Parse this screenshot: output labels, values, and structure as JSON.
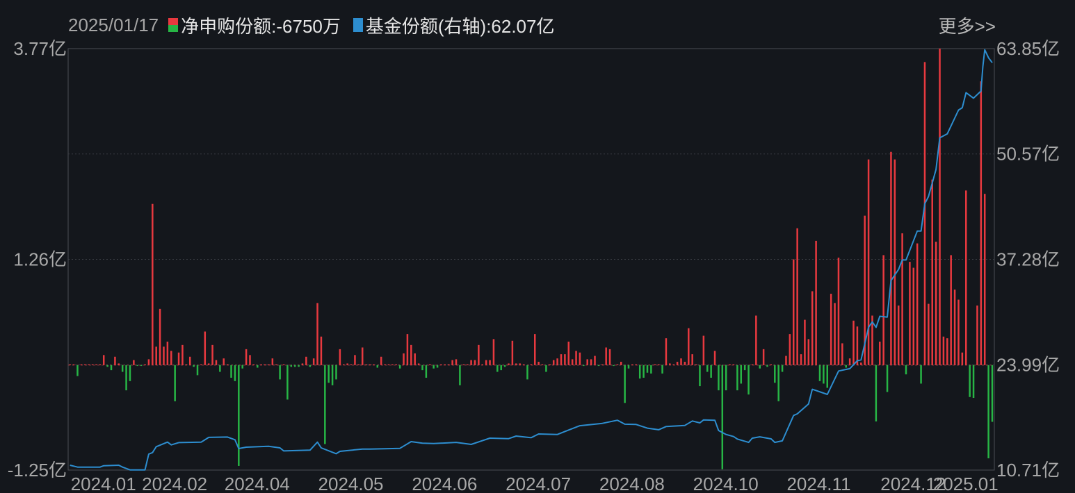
{
  "header": {
    "date": "2025/01/17",
    "legend_net": "净申购份额:-6750万",
    "legend_share": "基金份额(右轴):62.07亿",
    "more_label": "更多>>"
  },
  "colors": {
    "positive": "#e8393f",
    "negative": "#27b545",
    "line": "#2d8ed0",
    "background": "#14171c",
    "grid": "#3a3d44"
  },
  "chart_data": {
    "type": "bar+line",
    "series": [
      {
        "name": "净申购份额",
        "unit": "亿",
        "axis": "left",
        "type": "bar",
        "values": [
          0.01,
          0.01,
          -0.13,
          0.01,
          0.01,
          0.01,
          0.01,
          0.01,
          0.01,
          0.12,
          -0.02,
          -0.06,
          0.1,
          0.02,
          -0.08,
          -0.3,
          -0.19,
          0.06,
          -0.01,
          -0.01,
          0.01,
          0.07,
          1.92,
          0.22,
          0.67,
          0.22,
          0.28,
          0.17,
          -0.43,
          0.15,
          0.24,
          0.01,
          0.1,
          -0.02,
          -0.12,
          0.01,
          0.4,
          0.02,
          0.24,
          0.06,
          -0.08,
          0.08,
          0.01,
          -0.15,
          -0.19,
          -1.2,
          -0.04,
          0.19,
          0.12,
          0.01,
          -0.03,
          0.01,
          0.01,
          0.01,
          0.08,
          0.01,
          -0.17,
          0.01,
          -0.41,
          -0.02,
          -0.02,
          -0.02,
          0.02,
          0.1,
          -0.02,
          0.08,
          0.74,
          0.34,
          -0.94,
          -0.21,
          -0.24,
          -0.17,
          0.19,
          0.01,
          0.02,
          0.01,
          0.12,
          0.01,
          0.21,
          0.01,
          0.01,
          0.01,
          -0.03,
          0.1,
          0.01,
          0.01,
          0.01,
          0.01,
          -0.04,
          0.14,
          0.37,
          0.24,
          0.14,
          0.02,
          -0.06,
          -0.15,
          0.01,
          -0.04,
          -0.03,
          0.01,
          0.01,
          0.01,
          0.06,
          0.07,
          -0.24,
          0.01,
          0.01,
          0.06,
          0.06,
          0.24,
          0.01,
          0.06,
          0.06,
          0.31,
          -0.08,
          -0.06,
          -0.02,
          0.02,
          0.29,
          0.02,
          0.02,
          0.01,
          -0.17,
          0.01,
          0.37,
          0.04,
          0.01,
          -0.08,
          0.01,
          0.06,
          0.08,
          0.13,
          0.13,
          0.28,
          0.07,
          0.17,
          0.15,
          -0.01,
          0.07,
          0.07,
          0.11,
          -0.01,
          0.01,
          0.21,
          0.19,
          -0.01,
          0.01,
          0.04,
          -0.45,
          -0.04,
          0.01,
          0.01,
          -0.16,
          -0.15,
          -0.09,
          -0.1,
          0.01,
          0.01,
          -0.1,
          0.32,
          0.02,
          0.01,
          0.04,
          0.08,
          0.04,
          0.44,
          0.13,
          0.01,
          -0.25,
          0.35,
          -0.08,
          -0.15,
          0.17,
          -0.3,
          -1.24,
          -0.3,
          0.01,
          0.01,
          -0.3,
          -0.22,
          -0.06,
          -0.35,
          0.01,
          0.59,
          -0.04,
          0.19,
          -0.02,
          0.01,
          -0.21,
          -0.43,
          -0.08,
          0.11,
          0.37,
          1.26,
          1.63,
          0.13,
          0.54,
          0.31,
          0.88,
          1.48,
          -0.19,
          -0.22,
          -0.27,
          0.85,
          0.74,
          1.28,
          0.26,
          -0.03,
          0.08,
          0.53,
          0.46,
          0.03,
          1.78,
          2.45,
          0.59,
          -0.67,
          0.28,
          1.31,
          -0.32,
          2.54,
          2.45,
          0.71,
          1.57,
          -0.11,
          1.23,
          1.16,
          1.45,
          -0.22,
          3.61,
          0.73,
          2.21,
          1.47,
          3.77,
          0.34,
          0.32,
          1.31,
          0.9,
          0.78,
          0.15,
          2.08,
          -0.38,
          -0.39,
          0.71,
          3.38,
          2.04,
          -1.11,
          -0.675
        ]
      },
      {
        "name": "基金份额",
        "unit": "亿",
        "axis": "right",
        "type": "line",
        "points": [
          [
            0,
            11.32
          ],
          [
            2,
            11.09
          ],
          [
            8,
            11.09
          ],
          [
            9,
            11.26
          ],
          [
            13,
            11.32
          ],
          [
            14,
            11.09
          ],
          [
            16,
            10.74
          ],
          [
            20,
            10.74
          ],
          [
            21,
            12.72
          ],
          [
            22,
            12.92
          ],
          [
            23,
            13.66
          ],
          [
            26,
            14.24
          ],
          [
            27,
            13.89
          ],
          [
            29,
            14.18
          ],
          [
            35,
            14.24
          ],
          [
            37,
            14.83
          ],
          [
            42,
            14.88
          ],
          [
            44,
            14.54
          ],
          [
            45,
            13.42
          ],
          [
            47,
            13.6
          ],
          [
            53,
            13.71
          ],
          [
            56,
            13.51
          ],
          [
            57,
            13.13
          ],
          [
            64,
            13.22
          ],
          [
            66,
            14.24
          ],
          [
            67,
            13.51
          ],
          [
            71,
            12.78
          ],
          [
            72,
            13.07
          ],
          [
            78,
            13.36
          ],
          [
            80,
            13.36
          ],
          [
            88,
            13.45
          ],
          [
            91,
            14.3
          ],
          [
            94,
            14.1
          ],
          [
            97,
            14.05
          ],
          [
            103,
            14.2
          ],
          [
            107,
            13.95
          ],
          [
            112,
            14.74
          ],
          [
            117,
            14.68
          ],
          [
            119,
            15.0
          ],
          [
            123,
            14.8
          ],
          [
            125,
            15.26
          ],
          [
            130,
            15.2
          ],
          [
            133,
            15.76
          ],
          [
            136,
            16.3
          ],
          [
            142,
            16.6
          ],
          [
            146,
            17.0
          ],
          [
            148,
            16.5
          ],
          [
            151,
            16.46
          ],
          [
            154,
            16.0
          ],
          [
            157,
            15.8
          ],
          [
            159,
            16.2
          ],
          [
            164,
            16.34
          ],
          [
            166,
            16.9
          ],
          [
            168,
            16.66
          ],
          [
            169,
            17.04
          ],
          [
            172,
            17.0
          ],
          [
            173,
            15.7
          ],
          [
            175,
            15.2
          ],
          [
            177,
            14.94
          ],
          [
            178,
            14.62
          ],
          [
            181,
            14.2
          ],
          [
            182,
            14.74
          ],
          [
            184,
            14.9
          ],
          [
            187,
            14.65
          ],
          [
            188,
            14.2
          ],
          [
            190,
            14.4
          ],
          [
            193,
            17.6
          ],
          [
            194,
            17.8
          ],
          [
            197,
            19.05
          ],
          [
            198,
            20.9
          ],
          [
            202,
            20.25
          ],
          [
            205,
            23.2
          ],
          [
            208,
            23.5
          ],
          [
            210,
            24.5
          ],
          [
            211,
            24.6
          ],
          [
            213,
            28.7
          ],
          [
            214,
            29.4
          ],
          [
            215,
            28.7
          ],
          [
            216,
            30.1
          ],
          [
            218,
            30.0
          ],
          [
            219,
            34.6
          ],
          [
            221,
            36.0
          ],
          [
            222,
            37.2
          ],
          [
            223,
            37.2
          ],
          [
            226,
            40.85
          ],
          [
            227,
            40.85
          ],
          [
            228,
            44.3
          ],
          [
            229,
            45.2
          ],
          [
            231,
            48.6
          ],
          [
            232,
            52.6
          ],
          [
            234,
            53.1
          ],
          [
            237,
            56.1
          ],
          [
            238,
            56.4
          ],
          [
            239,
            58.3
          ],
          [
            241,
            57.6
          ],
          [
            243,
            58.5
          ],
          [
            243.5,
            61.6
          ],
          [
            244,
            63.7
          ],
          [
            245,
            62.7
          ],
          [
            246,
            62.07
          ]
        ]
      }
    ],
    "left_axis": {
      "range": [
        -1.25,
        3.77
      ],
      "tick_labels": [
        "3.77亿",
        "1.26亿",
        "-1.25亿"
      ],
      "tick_values": [
        3.77,
        1.26,
        -1.25
      ]
    },
    "right_axis": {
      "range": [
        10.71,
        63.85
      ],
      "tick_labels": [
        "63.85亿",
        "50.57亿",
        "37.28亿",
        "23.99亿",
        "10.71亿"
      ],
      "tick_values": [
        63.85,
        50.57,
        37.28,
        23.99,
        10.71
      ]
    },
    "x_ticks": [
      {
        "label": "2024.01",
        "day_index": 0
      },
      {
        "label": "2024.02",
        "day_index": 19
      },
      {
        "label": "2024.04",
        "day_index": 41
      },
      {
        "label": "2024.05",
        "day_index": 66
      },
      {
        "label": "2024.06",
        "day_index": 91
      },
      {
        "label": "2024.07",
        "day_index": 116
      },
      {
        "label": "2024.08",
        "day_index": 141
      },
      {
        "label": "2024.10",
        "day_index": 166
      },
      {
        "label": "2024.11",
        "day_index": 191
      },
      {
        "label": "2024.12",
        "day_index": 216
      },
      {
        "label": "2025.01",
        "day_index": 230
      }
    ],
    "grid": true
  }
}
